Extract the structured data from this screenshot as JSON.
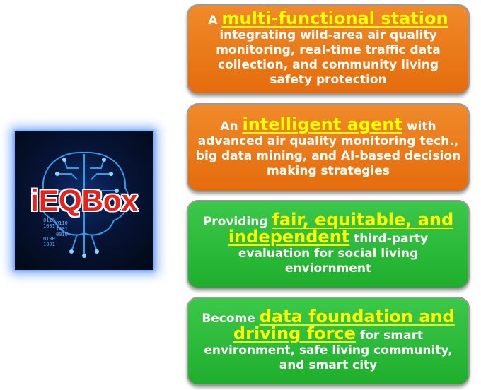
{
  "logo": {
    "text": "iEQBox",
    "binary": [
      "0110",
      "1001",
      "0110",
      "1001",
      "0010",
      "0100",
      "1001"
    ]
  },
  "boxes": [
    {
      "lead": "A ",
      "highlight": "multi-functional station",
      "rest": " integrating wild-area air quality monitoring, real-time traffic data collection, and community living safety protection",
      "color": "#e97a1c"
    },
    {
      "lead": "An ",
      "highlight": "intelligent agent",
      "rest": " with advanced air quality monitoring tech., big data mining, and AI-based decision making strategies",
      "color": "#e97a1c"
    },
    {
      "lead": "Providing ",
      "highlight": "fair, equitable, and independent",
      "rest": " third-party evaluation for social living enviornment",
      "color": "#2bbb38"
    },
    {
      "lead": "Become ",
      "highlight": "data foundation and driving force",
      "rest": " for smart environment, safe living community, and smart city",
      "color": "#2bbb38"
    }
  ]
}
